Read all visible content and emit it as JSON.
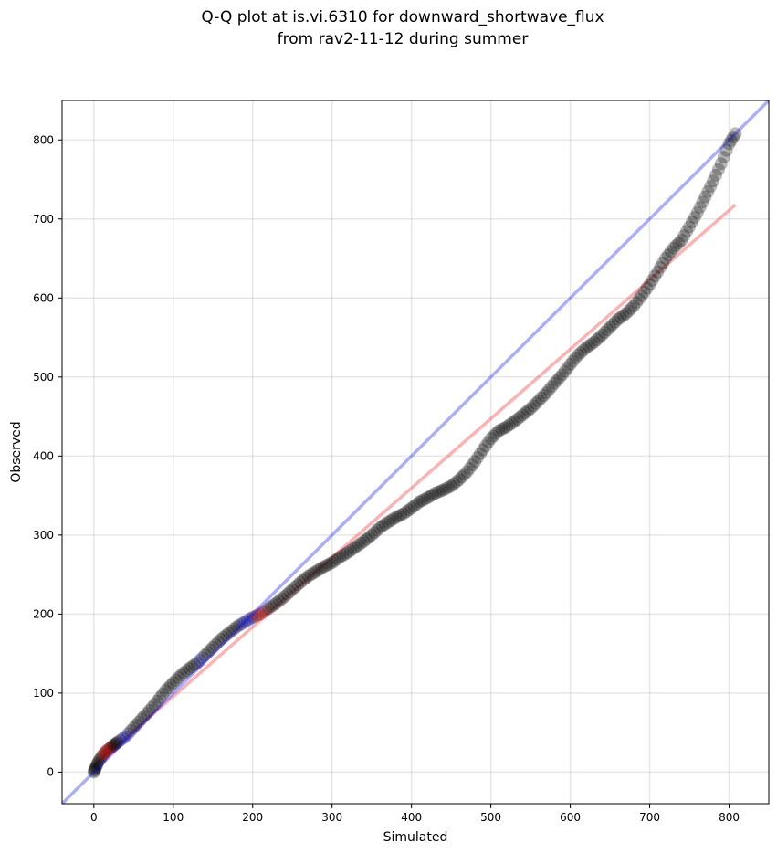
{
  "chart_data": {
    "type": "scatter",
    "title_line1": "Q-Q plot at is.vi.6310 for downward_shortwave_flux",
    "title_line2": "from rav2-11-12 during summer",
    "xlabel": "Simulated",
    "ylabel": "Observed",
    "xlim": [
      -40,
      850
    ],
    "ylim": [
      -40,
      850
    ],
    "xticks": [
      0,
      100,
      200,
      300,
      400,
      500,
      600,
      700,
      800
    ],
    "yticks": [
      0,
      100,
      200,
      300,
      400,
      500,
      600,
      700,
      800
    ],
    "grid": true,
    "colors": {
      "points": "#000000",
      "one_to_one_line": "#0000ff",
      "fit_line": "#ff0000",
      "highlight_blue": "#000080",
      "highlight_red": "#8b0000"
    },
    "one_to_one_line": [
      [
        -40,
        -40
      ],
      [
        850,
        850
      ]
    ],
    "fit_line": [
      [
        0,
        8
      ],
      [
        808,
        718
      ]
    ],
    "quantiles": {
      "x": [
        0,
        2,
        5,
        10,
        15,
        20,
        25,
        30,
        40,
        50,
        60,
        70,
        80,
        90,
        100,
        110,
        120,
        130,
        140,
        150,
        160,
        170,
        180,
        190,
        200,
        210,
        220,
        230,
        240,
        250,
        260,
        270,
        280,
        290,
        300,
        310,
        320,
        330,
        340,
        350,
        360,
        370,
        380,
        390,
        400,
        410,
        420,
        430,
        440,
        450,
        460,
        470,
        480,
        490,
        500,
        510,
        520,
        530,
        540,
        550,
        560,
        570,
        580,
        590,
        600,
        610,
        620,
        630,
        640,
        650,
        660,
        670,
        680,
        690,
        700,
        710,
        720,
        730,
        740,
        750,
        760,
        770,
        780,
        790,
        800,
        808
      ],
      "y": [
        0,
        5,
        12,
        20,
        26,
        30,
        34,
        38,
        45,
        56,
        67,
        78,
        90,
        103,
        113,
        123,
        131,
        138,
        148,
        158,
        168,
        176,
        184,
        190,
        196,
        200,
        207,
        214,
        222,
        231,
        240,
        248,
        254,
        260,
        265,
        272,
        278,
        285,
        292,
        300,
        309,
        316,
        322,
        327,
        334,
        342,
        347,
        353,
        357,
        362,
        370,
        380,
        393,
        408,
        422,
        432,
        437,
        444,
        452,
        460,
        470,
        480,
        492,
        503,
        516,
        528,
        537,
        544,
        553,
        563,
        573,
        580,
        590,
        603,
        617,
        633,
        650,
        663,
        673,
        690,
        708,
        728,
        748,
        770,
        795,
        808
      ]
    }
  }
}
